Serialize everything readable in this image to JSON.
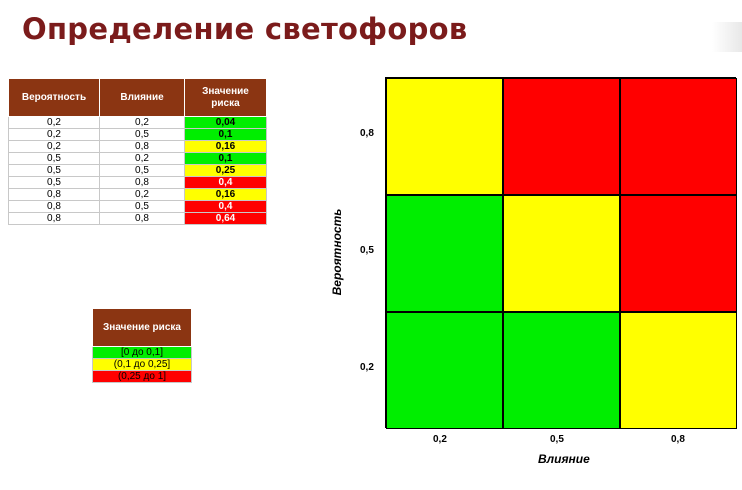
{
  "title": "Определение светофоров",
  "risk_table": {
    "headers": [
      "Вероятность",
      "Влияние",
      "Значение риска"
    ],
    "rows": [
      {
        "probability": "0,2",
        "impact": "0,2",
        "risk": "0,04",
        "color": "#00ee00"
      },
      {
        "probability": "0,2",
        "impact": "0,5",
        "risk": "0,1",
        "color": "#00ee00"
      },
      {
        "probability": "0,2",
        "impact": "0,8",
        "risk": "0,16",
        "color": "#ffff00"
      },
      {
        "probability": "0,5",
        "impact": "0,2",
        "risk": "0,1",
        "color": "#00ee00"
      },
      {
        "probability": "0,5",
        "impact": "0,5",
        "risk": "0,25",
        "color": "#ffff00"
      },
      {
        "probability": "0,5",
        "impact": "0,8",
        "risk": "0,4",
        "color": "#ff0000"
      },
      {
        "probability": "0,8",
        "impact": "0,2",
        "risk": "0,16",
        "color": "#ffff00"
      },
      {
        "probability": "0,8",
        "impact": "0,5",
        "risk": "0,4",
        "color": "#ff0000"
      },
      {
        "probability": "0,8",
        "impact": "0,8",
        "risk": "0,64",
        "color": "#ff0000"
      }
    ]
  },
  "legend": {
    "header": "Значение риска",
    "items": [
      {
        "label": "[0 до 0,1]",
        "color": "#00ee00"
      },
      {
        "label": "(0,1 до 0,25]",
        "color": "#ffff00"
      },
      {
        "label": "(0,25 до 1]",
        "color": "#ff0000"
      }
    ]
  },
  "matrix": {
    "ylabel": "Вероятность",
    "xlabel": "Влияние",
    "y_ticks": [
      "0,8",
      "0,5",
      "0,2"
    ],
    "x_ticks": [
      "0,2",
      "0,5",
      "0,8"
    ],
    "cells": [
      [
        "#ffff00",
        "#ff0000",
        "#ff0000"
      ],
      [
        "#00ee00",
        "#ffff00",
        "#ff0000"
      ],
      [
        "#00ee00",
        "#00ee00",
        "#ffff00"
      ]
    ]
  }
}
